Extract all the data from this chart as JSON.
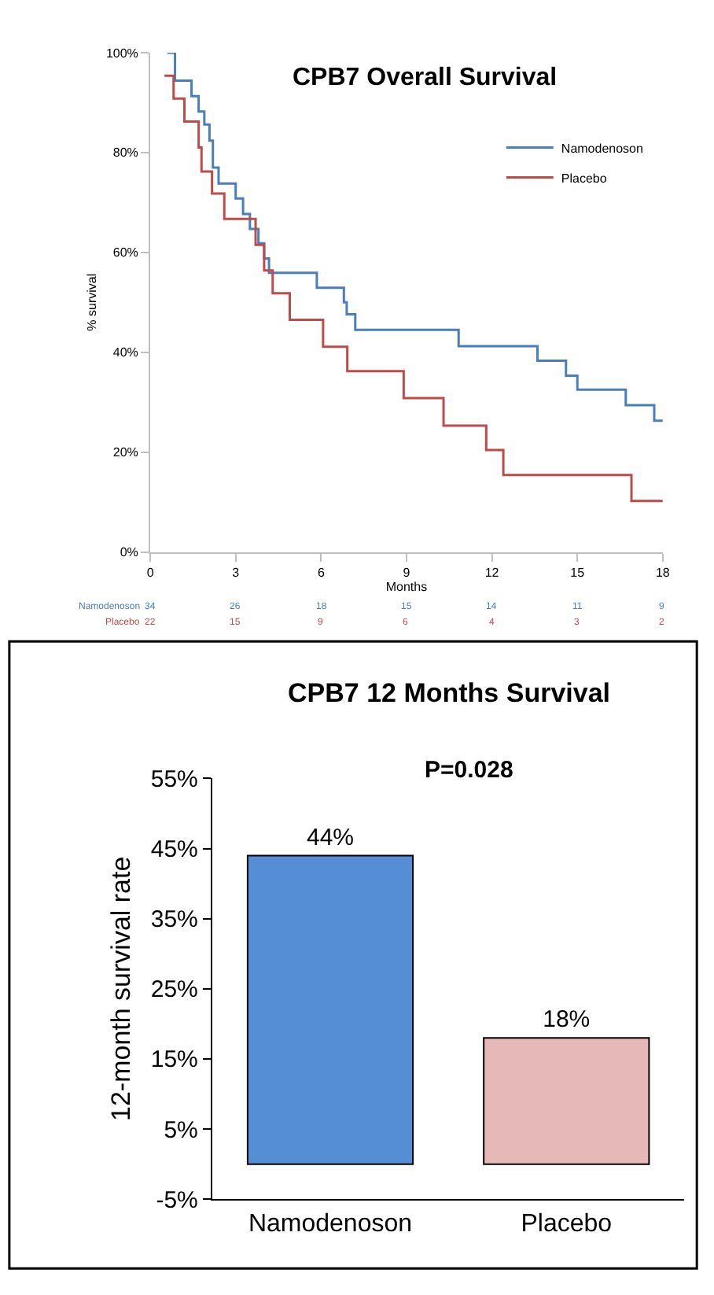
{
  "chart_data": [
    {
      "type": "step",
      "title": "CPB7 Overall Survival",
      "xlabel": "Months",
      "ylabel": "% survival",
      "legend": "right",
      "grid": false,
      "marker": "none",
      "line_style": "solid",
      "xlim": [
        0,
        18
      ],
      "xticks": [
        0,
        3,
        6,
        9,
        12,
        15,
        18
      ],
      "ylim": [
        0,
        100
      ],
      "yticks": [
        {
          "value": 0,
          "label": "0%"
        },
        {
          "value": 20,
          "label": "20%"
        },
        {
          "value": 40,
          "label": "40%"
        },
        {
          "value": 60,
          "label": "60%"
        },
        {
          "value": 80,
          "label": "80%"
        },
        {
          "value": 100,
          "label": "100%"
        }
      ],
      "series": [
        {
          "name": "Namodenoson",
          "color": "#4a7ebb",
          "x": [
            0.6,
            0.87,
            1.45,
            1.7,
            1.9,
            2.08,
            2.2,
            2.4,
            3.0,
            3.26,
            3.5,
            3.8,
            4.0,
            4.17,
            5.85,
            6.8,
            6.9,
            7.2,
            10.83,
            13.6,
            14.6,
            15.0,
            16.7,
            17.7,
            18.0
          ],
          "values": [
            100,
            94.4,
            91.3,
            88.2,
            85.6,
            82.4,
            77.0,
            73.8,
            70.8,
            67.7,
            64.7,
            61.8,
            58.8,
            55.9,
            52.9,
            50.0,
            47.6,
            44.5,
            41.2,
            38.3,
            35.3,
            32.5,
            29.4,
            26.3,
            26.3
          ]
        },
        {
          "name": "Placebo",
          "color": "#be4b48",
          "x": [
            0.5,
            0.82,
            1.2,
            1.7,
            1.8,
            2.17,
            2.6,
            3.7,
            4.0,
            4.3,
            4.9,
            6.07,
            6.92,
            8.9,
            10.3,
            11.8,
            12.4,
            16.9,
            18.0
          ],
          "values": [
            95.4,
            90.8,
            86.2,
            81.0,
            76.2,
            71.8,
            66.7,
            61.5,
            56.4,
            51.8,
            46.5,
            41.1,
            36.2,
            30.8,
            25.3,
            20.4,
            15.4,
            10.2,
            10.2
          ]
        }
      ],
      "annotations": [
        "Namodenoson",
        "34",
        "26",
        "18",
        "15",
        "14",
        "11",
        "9",
        "Placebo",
        "22",
        "15",
        "9",
        "6",
        "4",
        "3",
        "2"
      ]
    },
    {
      "type": "bar",
      "title": "CPB7 12 Months Survival",
      "ylabel": "12-month survival rate",
      "categories": [
        "Namodenoson",
        "Placebo"
      ],
      "values": [
        44,
        18
      ],
      "colors": [
        "#558ed5",
        "#e6b9b8"
      ],
      "value_labels": [
        "44%",
        "18%"
      ],
      "legend": false,
      "grid": false,
      "ylim": [
        -5,
        55
      ],
      "yticks": [
        {
          "value": -5,
          "label": "-5%"
        },
        {
          "value": 5,
          "label": "5%"
        },
        {
          "value": 15,
          "label": "15%"
        },
        {
          "value": 25,
          "label": "25%"
        },
        {
          "value": 35,
          "label": "35%"
        },
        {
          "value": 45,
          "label": "45%"
        },
        {
          "value": 55,
          "label": "55%"
        }
      ],
      "annotations": [
        "P=0.028"
      ]
    }
  ]
}
